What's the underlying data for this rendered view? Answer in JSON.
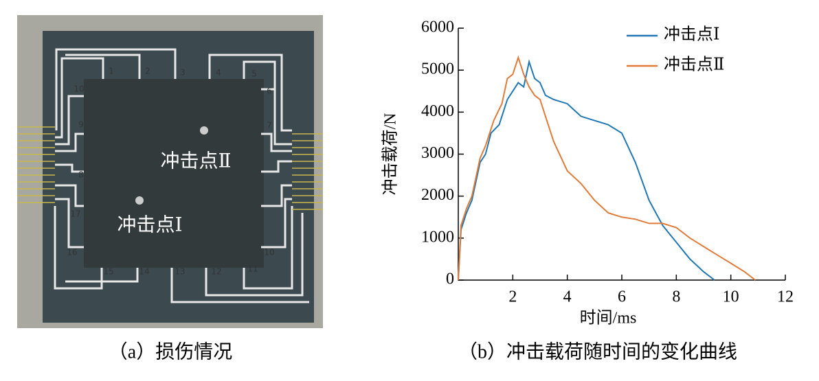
{
  "photo": {
    "sensor_labels": [
      "1",
      "2",
      "3",
      "4",
      "5",
      "6",
      "7",
      "10",
      "11",
      "12",
      "13",
      "14",
      "15",
      "16",
      "17",
      "8",
      "9",
      "10"
    ],
    "impact_points": [
      "冲击点Ⅱ",
      "冲击点Ⅰ"
    ]
  },
  "captions": [
    "（a）损伤情况",
    "（b）冲击载荷随时间的变化曲线"
  ],
  "chart_data": {
    "type": "line",
    "xlabel": "时间/ms",
    "ylabel": "冲击载荷/N",
    "xlim": [
      0,
      12
    ],
    "xticks": [
      2,
      4,
      6,
      8,
      10,
      12
    ],
    "ylim": [
      0,
      6000
    ],
    "yticks": [
      0,
      1000,
      2000,
      3000,
      4000,
      5000,
      6000
    ],
    "legend": "upper right",
    "series": [
      {
        "name": "冲击点Ⅰ",
        "color": "#1f77b4",
        "x": [
          0,
          0.1,
          0.3,
          0.5,
          0.8,
          1.0,
          1.2,
          1.5,
          1.8,
          2.0,
          2.2,
          2.4,
          2.6,
          2.8,
          3.0,
          3.2,
          3.5,
          4.0,
          4.5,
          5.0,
          5.5,
          6.0,
          6.5,
          7.0,
          7.5,
          8.0,
          8.5,
          9.0,
          9.4
        ],
        "values": [
          0,
          1200,
          1600,
          1900,
          2800,
          3000,
          3500,
          3700,
          4300,
          4500,
          4700,
          4600,
          5200,
          4800,
          4700,
          4400,
          4300,
          4200,
          3900,
          3800,
          3700,
          3500,
          2800,
          1900,
          1300,
          900,
          500,
          200,
          0
        ]
      },
      {
        "name": "冲击点Ⅱ",
        "color": "#e07b39",
        "x": [
          0,
          0.1,
          0.3,
          0.5,
          0.8,
          1.0,
          1.3,
          1.6,
          1.8,
          2.0,
          2.2,
          2.4,
          2.6,
          2.8,
          3.0,
          3.2,
          3.5,
          4.0,
          4.5,
          5.0,
          5.5,
          6.0,
          6.5,
          7.0,
          7.5,
          8.0,
          8.5,
          9.0,
          9.5,
          10.0,
          10.5,
          10.9
        ],
        "values": [
          0,
          1300,
          1700,
          2000,
          2900,
          3200,
          3800,
          4200,
          4800,
          4900,
          5300,
          4900,
          4600,
          4400,
          4300,
          3900,
          3300,
          2600,
          2300,
          1900,
          1600,
          1500,
          1450,
          1350,
          1350,
          1250,
          1000,
          800,
          600,
          400,
          200,
          0
        ]
      }
    ]
  }
}
